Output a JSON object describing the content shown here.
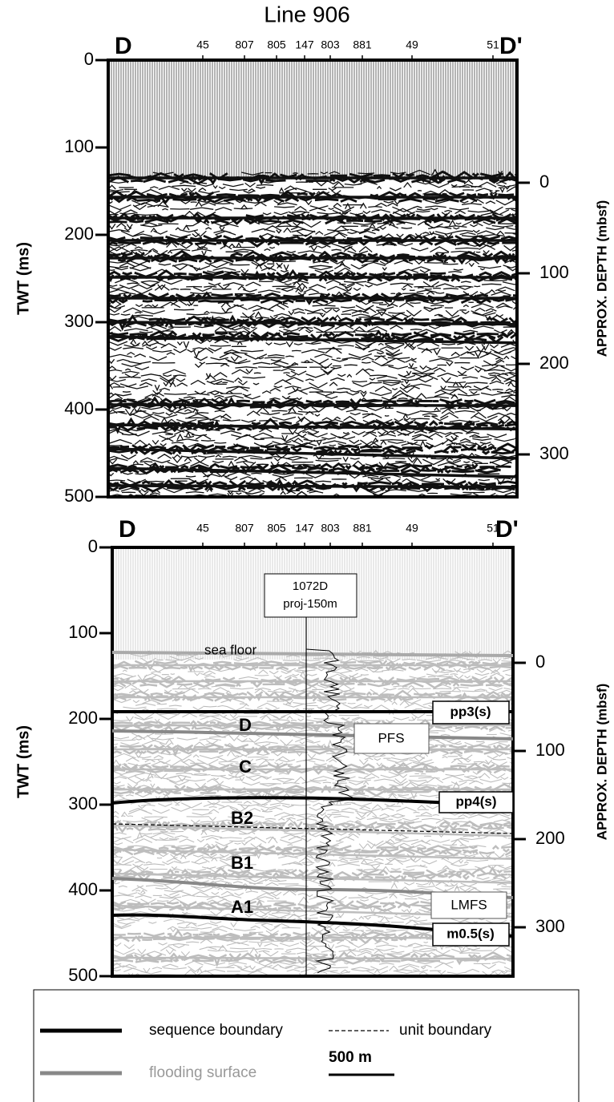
{
  "title": "Line 906",
  "panels": [
    {
      "left_label": "D",
      "right_label": "D'",
      "shotpoints": [
        45,
        807,
        805,
        147,
        803,
        881,
        49,
        51
      ],
      "y_axis": {
        "title": "TWT (ms)",
        "ticks": [
          0,
          100,
          200,
          300,
          400,
          500
        ]
      },
      "y2_axis": {
        "title": "APPROX. DEPTH (mbsf)",
        "ticks": [
          0,
          100,
          200,
          300
        ]
      }
    },
    {
      "left_label": "D",
      "right_label": "D'",
      "shotpoints": [
        45,
        807,
        805,
        147,
        803,
        881,
        49,
        51
      ],
      "y_axis": {
        "title": "TWT (ms)",
        "ticks": [
          0,
          100,
          200,
          300,
          400,
          500
        ]
      },
      "y2_axis": {
        "title": "APPROX. DEPTH (mbsf)",
        "ticks": [
          0,
          100,
          200,
          300
        ]
      },
      "well": {
        "name": "1072D",
        "note": "proj-150m"
      },
      "sea_floor": "sea floor",
      "horizons": [
        "pp3(s)",
        "PFS",
        "pp4(s)",
        "LMFS",
        "m0.5(s)"
      ],
      "units": [
        "D",
        "C",
        "B2",
        "B1",
        "A1"
      ]
    }
  ],
  "legend": {
    "sequence_boundary": "sequence boundary",
    "unit_boundary": "unit boundary",
    "flooding_surface": "flooding surface",
    "scale": "500 m"
  }
}
